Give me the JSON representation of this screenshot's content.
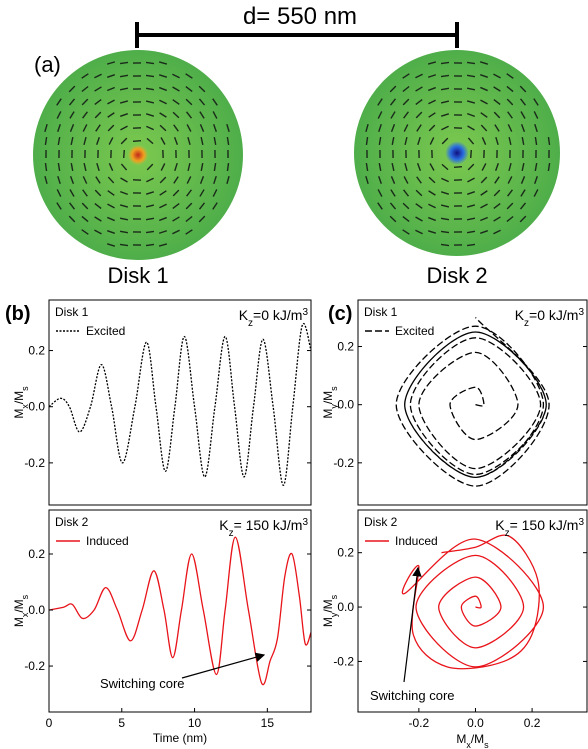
{
  "panel_a": {
    "label": "(a)",
    "scale": "d= 550 nm",
    "disks": [
      "Disk 1",
      "Disk 2"
    ]
  },
  "chart_data": [
    {
      "type": "line",
      "panel_label": "(b)",
      "title": "Disk 1",
      "kz": {
        "base": "K",
        "sub": "z",
        "text": "=0 kJ/m",
        "sup": "3"
      },
      "ylabel": [
        "M",
        "x",
        "/M",
        "s"
      ],
      "xlim": [
        0,
        18
      ],
      "ylim": [
        -0.35,
        0.38
      ],
      "yticks": [
        0.2,
        {
          "value": 0,
          "label": "0.0"
        },
        -0.2
      ],
      "x": [
        0,
        0.8,
        1.4,
        2.1,
        2.85,
        3.6,
        4.3,
        5.05,
        5.9,
        6.7,
        7.35,
        8.0,
        8.65,
        9.3,
        10.0,
        10.7,
        11.4,
        12.1,
        12.75,
        13.4,
        14.05,
        14.7,
        15.4,
        16.1,
        16.75,
        17.4,
        18
      ],
      "series": [
        {
          "name": "Excited",
          "color": "#000000",
          "line_style": "dotted",
          "values": [
            0,
            0.03,
            0,
            -0.09,
            0,
            0.15,
            0,
            -0.2,
            0,
            0.23,
            0,
            -0.23,
            0,
            0.25,
            0,
            -0.25,
            0,
            0.25,
            0,
            -0.25,
            0,
            0.24,
            0,
            -0.28,
            0,
            0.29,
            0.2
          ]
        }
      ]
    },
    {
      "type": "line",
      "title": "Disk 2",
      "kz": {
        "base": "K",
        "sub": "z",
        "text": "= 150 kJ/m",
        "sup": "3"
      },
      "ylabel": [
        "M",
        "x",
        "/M",
        "s"
      ],
      "xlim": [
        0,
        18
      ],
      "ylim": [
        -0.364,
        0.357
      ],
      "xticks": [
        0,
        5,
        10,
        15
      ],
      "xlabel": "Time (nm)",
      "yticks": [
        0.2,
        {
          "value": 0,
          "label": "0.0"
        },
        -0.2
      ],
      "annotation": "Switching core",
      "x": [
        0,
        1.0,
        1.6,
        2.3,
        3.1,
        3.9,
        4.7,
        5.6,
        6.4,
        7.2,
        7.9,
        8.5,
        9.1,
        9.8,
        10.6,
        11.5,
        12.1,
        12.8,
        13.7,
        14.6,
        15.2,
        15.7,
        16.2,
        16.7,
        17.2,
        17.6,
        18
      ],
      "series": [
        {
          "name": "Induced",
          "color": "#e8141a",
          "line_style": "solid",
          "values": [
            0,
            0.01,
            0.02,
            -0.03,
            0,
            0.08,
            0,
            -0.11,
            0,
            0.14,
            0,
            -0.17,
            0,
            0.2,
            0,
            -0.23,
            0,
            0.26,
            0,
            -0.26,
            -0.18,
            -0.1,
            0.12,
            0.2,
            0.05,
            -0.12,
            -0.08
          ]
        }
      ]
    },
    {
      "type": "line",
      "panel_label": "(c)",
      "title": "Disk 1",
      "kz": {
        "base": "K",
        "sub": "z",
        "text": "=0 kJ/m",
        "sup": "3"
      },
      "ylabel": [
        "M",
        "y",
        "/M",
        "s"
      ],
      "xlim": [
        -0.415,
        0.394
      ],
      "ylim": [
        -0.345,
        0.36
      ],
      "yticks": [
        0.2,
        {
          "value": 0,
          "label": "0.0"
        },
        -0.2
      ],
      "x": [
        0,
        0.03,
        0,
        -0.09,
        0,
        0.15,
        0,
        -0.2,
        0,
        0.23,
        0,
        -0.23,
        0,
        0.25,
        0,
        -0.25,
        0,
        0.25,
        0,
        -0.25,
        0,
        0.24,
        0,
        -0.28,
        0,
        0.26,
        0
      ],
      "series": [
        {
          "name": "Excited",
          "color": "#000000",
          "line_style": "dashed",
          "values": [
            0,
            0,
            0.06,
            0,
            -0.12,
            0,
            0.18,
            0,
            -0.22,
            0,
            0.23,
            0,
            -0.24,
            0,
            0.25,
            0,
            -0.25,
            0,
            0.25,
            0,
            -0.25,
            0,
            0.27,
            0,
            -0.28,
            0,
            0.3
          ]
        }
      ]
    },
    {
      "type": "line",
      "title": "Disk 2",
      "kz": {
        "base": "K",
        "sub": "z",
        "text": "= 150 kJ/m",
        "sup": "3"
      },
      "ylabel": [
        "M",
        "y",
        "/M",
        "s"
      ],
      "xlim": [
        -0.415,
        0.394
      ],
      "ylim": [
        -0.386,
        0.357
      ],
      "xticks": [
        -0.2,
        {
          "value": 0,
          "label": "0.0"
        },
        0.2
      ],
      "xlabel": [
        "M",
        "x",
        "/M",
        "s"
      ],
      "yticks": [
        0.2,
        {
          "value": 0,
          "label": "0.0"
        },
        -0.2
      ],
      "annotation": "Switching core",
      "x": [
        0,
        0.02,
        0,
        -0.05,
        0,
        0.09,
        0,
        -0.13,
        0,
        0.17,
        0,
        -0.21,
        0,
        0.24,
        0,
        -0.25,
        -0.2,
        -0.22,
        -0.1,
        0.1,
        0.2,
        0.22,
        0.12,
        0.0,
        -0.12
      ],
      "series": [
        {
          "name": "Induced",
          "color": "#e8141a",
          "line_style": "solid",
          "values": [
            0,
            0,
            0.04,
            0,
            -0.07,
            0,
            0.11,
            0,
            -0.15,
            0,
            0.19,
            0,
            -0.22,
            0,
            0.25,
            0.05,
            0.15,
            -0.1,
            -0.22,
            -0.2,
            -0.1,
            0.1,
            0.26,
            0.22,
            0.2
          ]
        }
      ]
    }
  ]
}
